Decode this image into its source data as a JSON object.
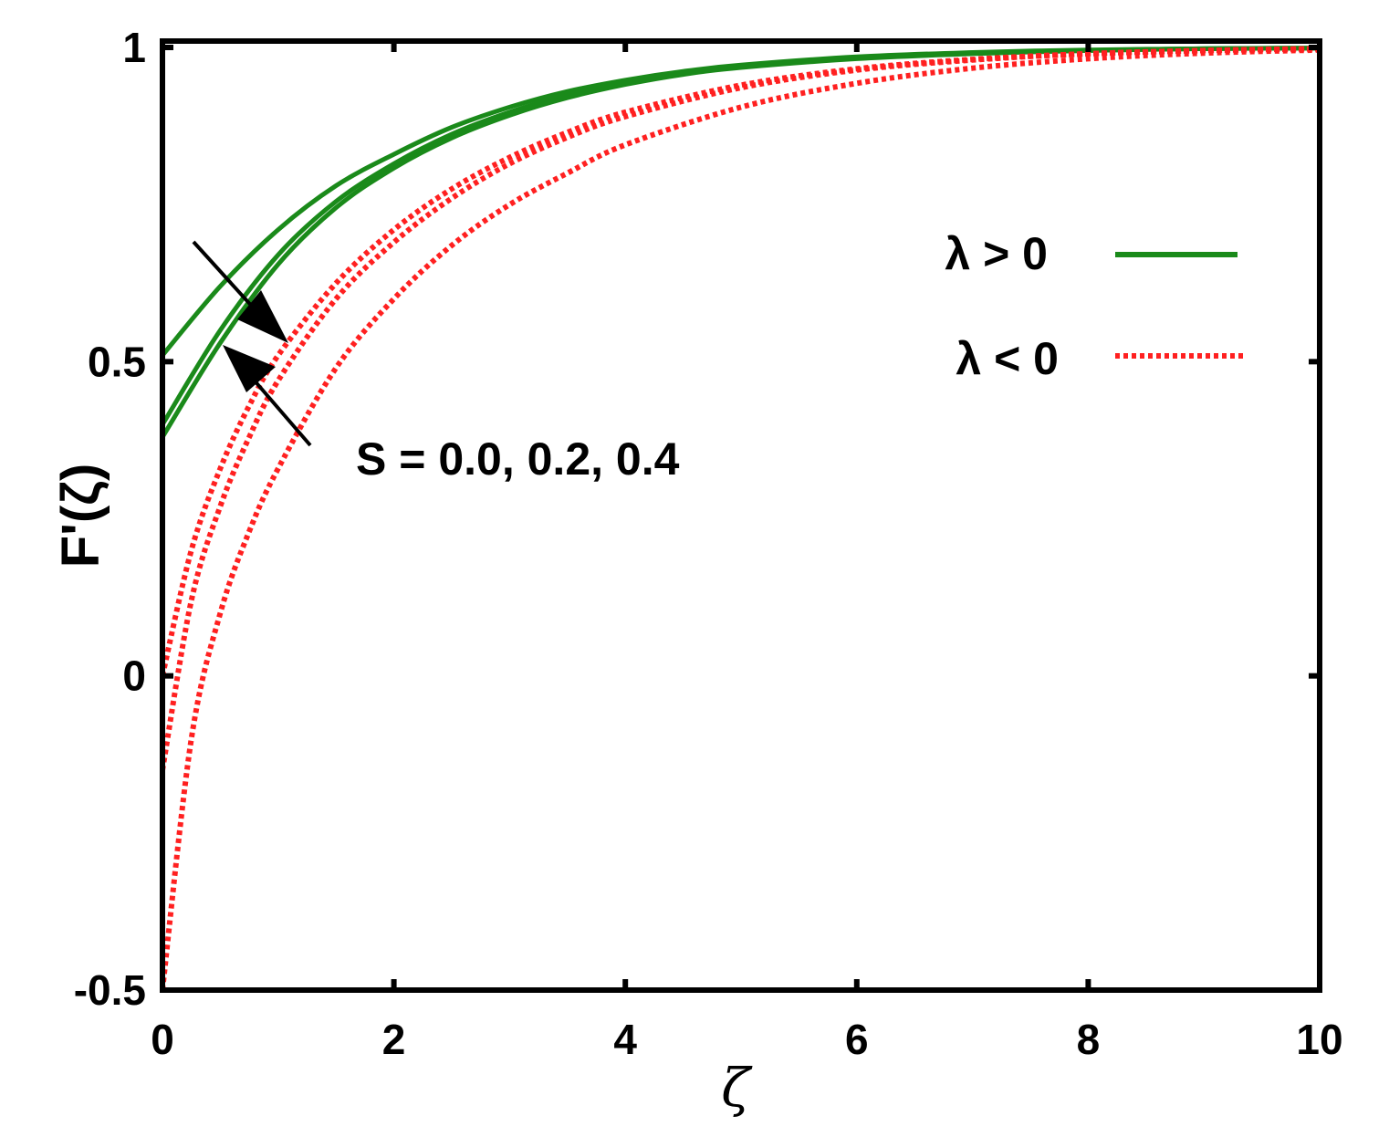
{
  "chart_data": {
    "type": "line",
    "title": "",
    "xlabel": "ζ",
    "ylabel": "F'(ζ)",
    "xlim": [
      0,
      10
    ],
    "ylim": [
      -0.5,
      1
    ],
    "xticks": [
      0,
      2,
      4,
      6,
      8,
      10
    ],
    "xtick_labels": [
      "0",
      "2",
      "4",
      "6",
      "8",
      "10"
    ],
    "yticks": [
      -0.5,
      0,
      0.5,
      1
    ],
    "ytick_labels": [
      "-0.5",
      "0",
      "0.5",
      "1"
    ],
    "grid": false,
    "legend_position": "right",
    "legend": [
      {
        "label": "λ > 0",
        "color": "#1a8a1a",
        "style": "solid"
      },
      {
        "label": "λ < 0",
        "color": "#ff2020",
        "style": "dotted"
      }
    ],
    "annotation": "S = 0.0, 0.2, 0.4",
    "series": [
      {
        "group": "λ > 0",
        "color": "#1a8a1a",
        "style": "solid",
        "x": [
          0,
          0.5,
          1,
          1.5,
          2,
          2.5,
          3,
          3.5,
          4,
          4.5,
          5,
          6,
          7,
          8,
          9,
          10
        ],
        "y": [
          0.51,
          0.62,
          0.71,
          0.78,
          0.83,
          0.873,
          0.905,
          0.93,
          0.948,
          0.962,
          0.972,
          0.985,
          0.992,
          0.996,
          0.998,
          0.999
        ]
      },
      {
        "group": "λ > 0",
        "color": "#1a8a1a",
        "style": "solid",
        "x": [
          0,
          0.5,
          1,
          1.5,
          2,
          2.5,
          3,
          3.5,
          4,
          4.5,
          5,
          6,
          7,
          8,
          9,
          10
        ],
        "y": [
          0.4,
          0.55,
          0.67,
          0.755,
          0.815,
          0.862,
          0.897,
          0.924,
          0.944,
          0.959,
          0.969,
          0.983,
          0.991,
          0.995,
          0.998,
          0.999
        ]
      },
      {
        "group": "λ > 0",
        "color": "#1a8a1a",
        "style": "solid",
        "x": [
          0,
          0.5,
          1,
          1.5,
          2,
          2.5,
          3,
          3.5,
          4,
          4.5,
          5,
          6,
          7,
          8,
          9,
          10
        ],
        "y": [
          0.38,
          0.53,
          0.655,
          0.745,
          0.808,
          0.856,
          0.892,
          0.92,
          0.941,
          0.957,
          0.968,
          0.982,
          0.99,
          0.995,
          0.998,
          0.999
        ]
      },
      {
        "group": "λ < 0",
        "color": "#ff2020",
        "style": "dotted",
        "x": [
          0,
          0.25,
          0.5,
          0.75,
          1,
          1.5,
          2,
          2.5,
          3,
          3.5,
          4,
          5,
          6,
          7,
          8,
          9,
          10
        ],
        "y": [
          0.0,
          0.2,
          0.33,
          0.43,
          0.51,
          0.625,
          0.71,
          0.775,
          0.825,
          0.865,
          0.897,
          0.94,
          0.966,
          0.981,
          0.99,
          0.995,
          0.998
        ]
      },
      {
        "group": "λ < 0",
        "color": "#ff2020",
        "style": "dotted",
        "x": [
          0,
          0.25,
          0.5,
          0.75,
          1,
          1.5,
          2,
          2.5,
          3,
          3.5,
          4,
          5,
          6,
          7,
          8,
          9,
          10
        ],
        "y": [
          -0.15,
          0.12,
          0.27,
          0.38,
          0.47,
          0.6,
          0.69,
          0.76,
          0.815,
          0.857,
          0.89,
          0.936,
          0.964,
          0.98,
          0.99,
          0.995,
          0.998
        ]
      },
      {
        "group": "λ < 0",
        "color": "#ff2020",
        "style": "dotted",
        "x": [
          0,
          0.25,
          0.5,
          0.75,
          1,
          1.5,
          2,
          2.5,
          3,
          3.5,
          4,
          5,
          6,
          7,
          8,
          9,
          10
        ],
        "y": [
          -0.5,
          -0.1,
          0.1,
          0.23,
          0.33,
          0.49,
          0.6,
          0.685,
          0.75,
          0.8,
          0.845,
          0.905,
          0.943,
          0.967,
          0.982,
          0.991,
          0.996
        ]
      }
    ]
  }
}
